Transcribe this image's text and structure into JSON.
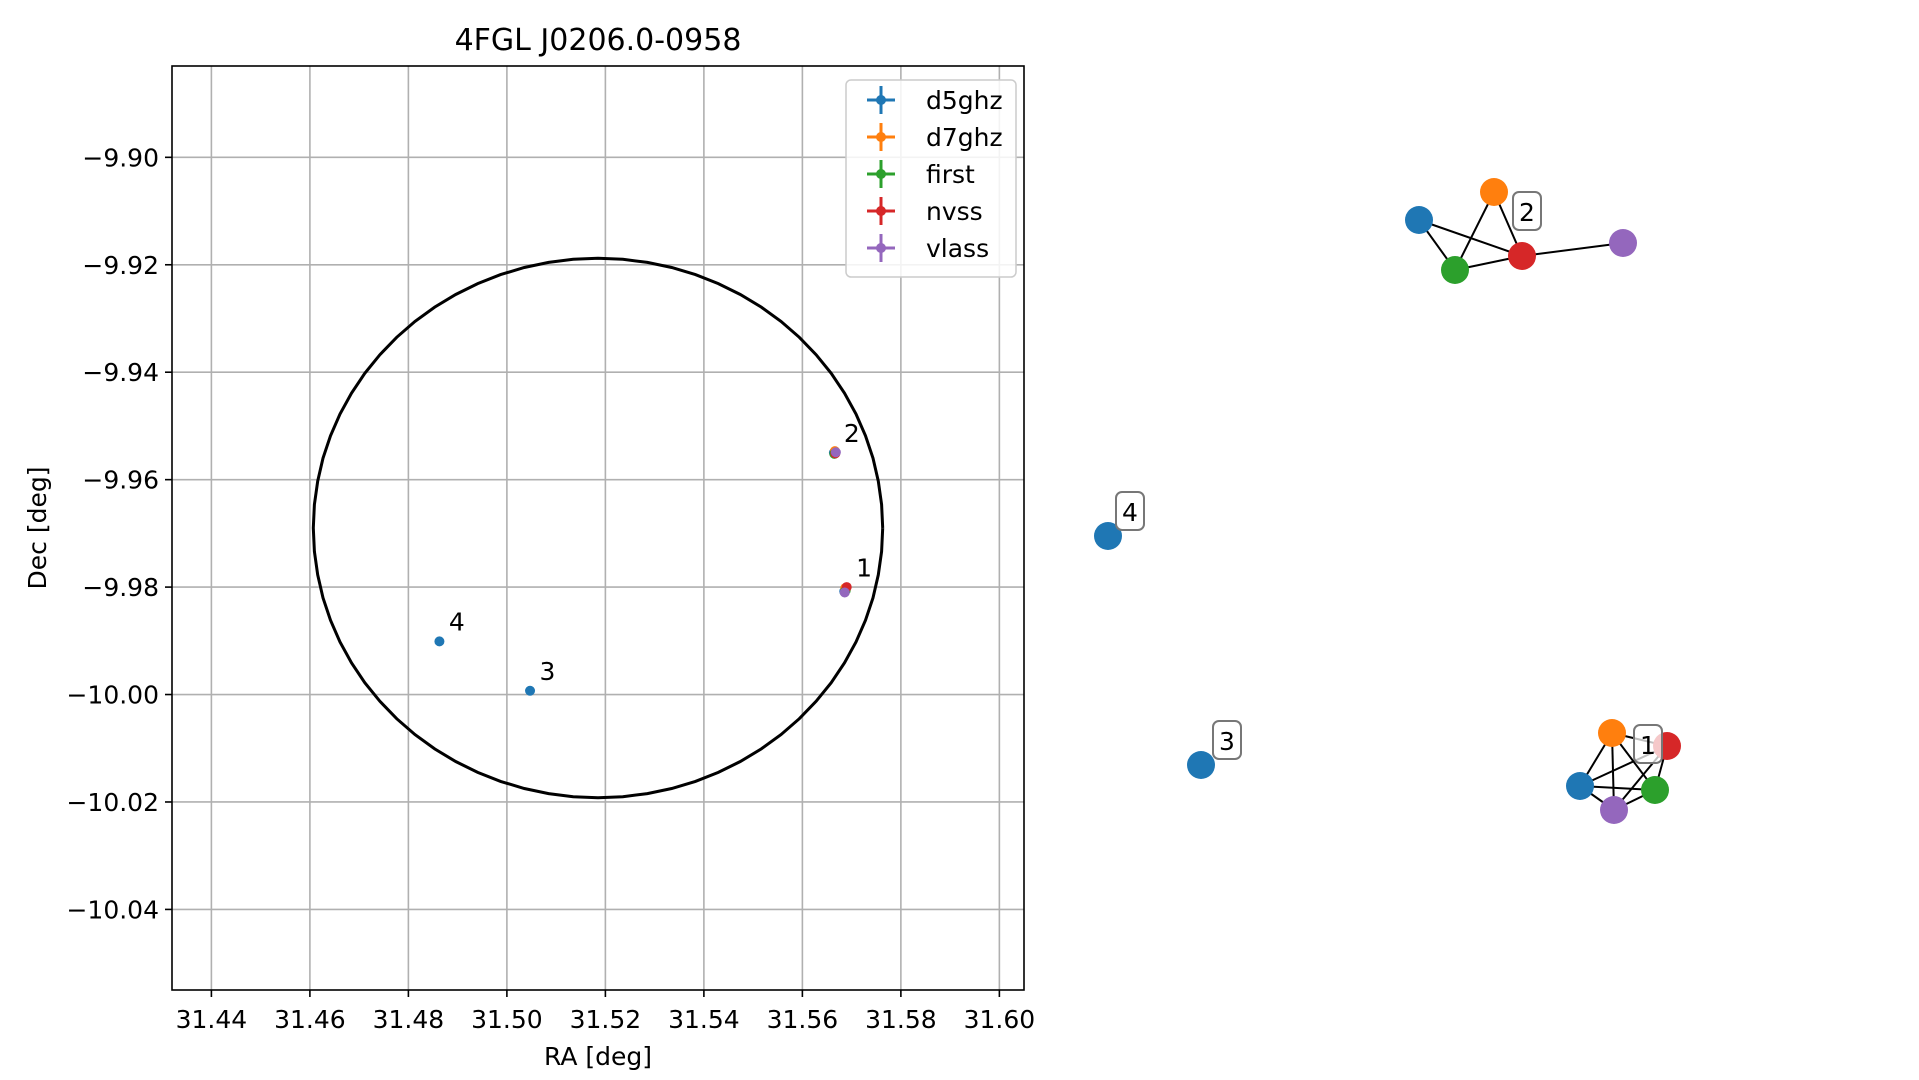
{
  "chart_data": [
    {
      "type": "scatter",
      "title": "4FGL J0206.0-0958",
      "xlabel": "RA [deg]",
      "ylabel": "Dec [deg]",
      "xlim": [
        31.432,
        31.605
      ],
      "ylim": [
        -10.055,
        -9.883
      ],
      "xticks": [
        31.44,
        31.46,
        31.48,
        31.5,
        31.52,
        31.54,
        31.56,
        31.58,
        31.6
      ],
      "xtick_labels": [
        "31.44",
        "31.46",
        "31.48",
        "31.50",
        "31.52",
        "31.54",
        "31.56",
        "31.58",
        "31.60"
      ],
      "yticks": [
        -9.9,
        -9.92,
        -9.94,
        -9.96,
        -9.98,
        -10.0,
        -10.02,
        -10.04
      ],
      "ytick_labels": [
        "−9.90",
        "−9.92",
        "−9.94",
        "−9.96",
        "−9.98",
        "−10.00",
        "−10.02",
        "−10.04"
      ],
      "grid": true,
      "legend_position": "top-right",
      "series": [
        {
          "name": "d5ghz",
          "color": "#1f77b4",
          "points": [
            [
              31.5685,
              -9.9808
            ],
            [
              31.5664,
              -9.955
            ],
            [
              31.5047,
              -9.9993
            ],
            [
              31.4863,
              -9.9901
            ]
          ]
        },
        {
          "name": "d7ghz",
          "color": "#ff7f0e",
          "points": [
            [
              31.5687,
              -9.9802
            ],
            [
              31.5666,
              -9.9547
            ]
          ]
        },
        {
          "name": "first",
          "color": "#2ca02c",
          "points": [
            [
              31.5688,
              -9.9806
            ],
            [
              31.5665,
              -9.9552
            ]
          ]
        },
        {
          "name": "nvss",
          "color": "#d62728",
          "points": [
            [
              31.569,
              -9.98
            ],
            [
              31.5667,
              -9.9551
            ]
          ]
        },
        {
          "name": "vlass",
          "color": "#9467bd",
          "points": [
            [
              31.5686,
              -9.981
            ],
            [
              31.5668,
              -9.9549
            ]
          ]
        }
      ],
      "point_labels": [
        {
          "text": "1",
          "x": 31.5693,
          "y": -9.9795
        },
        {
          "text": "2",
          "x": 31.5668,
          "y": -9.9545
        },
        {
          "text": "3",
          "x": 31.505,
          "y": -9.9988
        },
        {
          "text": "4",
          "x": 31.4866,
          "y": -9.9896
        }
      ],
      "circle": {
        "center": [
          31.5185,
          -9.969
        ],
        "radius_ra": 0.0578,
        "radius_dec": 0.0502
      }
    },
    {
      "type": "network",
      "nodes": [
        {
          "id": "1-d5ghz",
          "series": "d5ghz",
          "cluster": "1"
        },
        {
          "id": "1-d7ghz",
          "series": "d7ghz",
          "cluster": "1"
        },
        {
          "id": "1-first",
          "series": "first",
          "cluster": "1"
        },
        {
          "id": "1-nvss",
          "series": "nvss",
          "cluster": "1"
        },
        {
          "id": "1-vlass",
          "series": "vlass",
          "cluster": "1"
        },
        {
          "id": "2-d5ghz",
          "series": "d5ghz",
          "cluster": "2"
        },
        {
          "id": "2-d7ghz",
          "series": "d7ghz",
          "cluster": "2"
        },
        {
          "id": "2-first",
          "series": "first",
          "cluster": "2"
        },
        {
          "id": "2-nvss",
          "series": "nvss",
          "cluster": "2"
        },
        {
          "id": "2-vlass",
          "series": "vlass",
          "cluster": "2"
        },
        {
          "id": "3-d5ghz",
          "series": "d5ghz",
          "cluster": "3"
        },
        {
          "id": "4-d5ghz",
          "series": "d5ghz",
          "cluster": "4"
        }
      ],
      "edges": [
        [
          "1-d5ghz",
          "1-d7ghz"
        ],
        [
          "1-d5ghz",
          "1-first"
        ],
        [
          "1-d5ghz",
          "1-nvss"
        ],
        [
          "1-d5ghz",
          "1-vlass"
        ],
        [
          "1-d7ghz",
          "1-first"
        ],
        [
          "1-d7ghz",
          "1-nvss"
        ],
        [
          "1-d7ghz",
          "1-vlass"
        ],
        [
          "1-first",
          "1-nvss"
        ],
        [
          "1-first",
          "1-vlass"
        ],
        [
          "1-nvss",
          "1-vlass"
        ],
        [
          "2-d5ghz",
          "2-first"
        ],
        [
          "2-d5ghz",
          "2-nvss"
        ],
        [
          "2-d7ghz",
          "2-first"
        ],
        [
          "2-d7ghz",
          "2-nvss"
        ],
        [
          "2-first",
          "2-nvss"
        ],
        [
          "2-nvss",
          "2-vlass"
        ]
      ],
      "cluster_labels": [
        "1",
        "2",
        "3",
        "4"
      ]
    }
  ],
  "colors": {
    "d5ghz": "#1f77b4",
    "d7ghz": "#ff7f0e",
    "first": "#2ca02c",
    "nvss": "#d62728",
    "vlass": "#9467bd"
  }
}
